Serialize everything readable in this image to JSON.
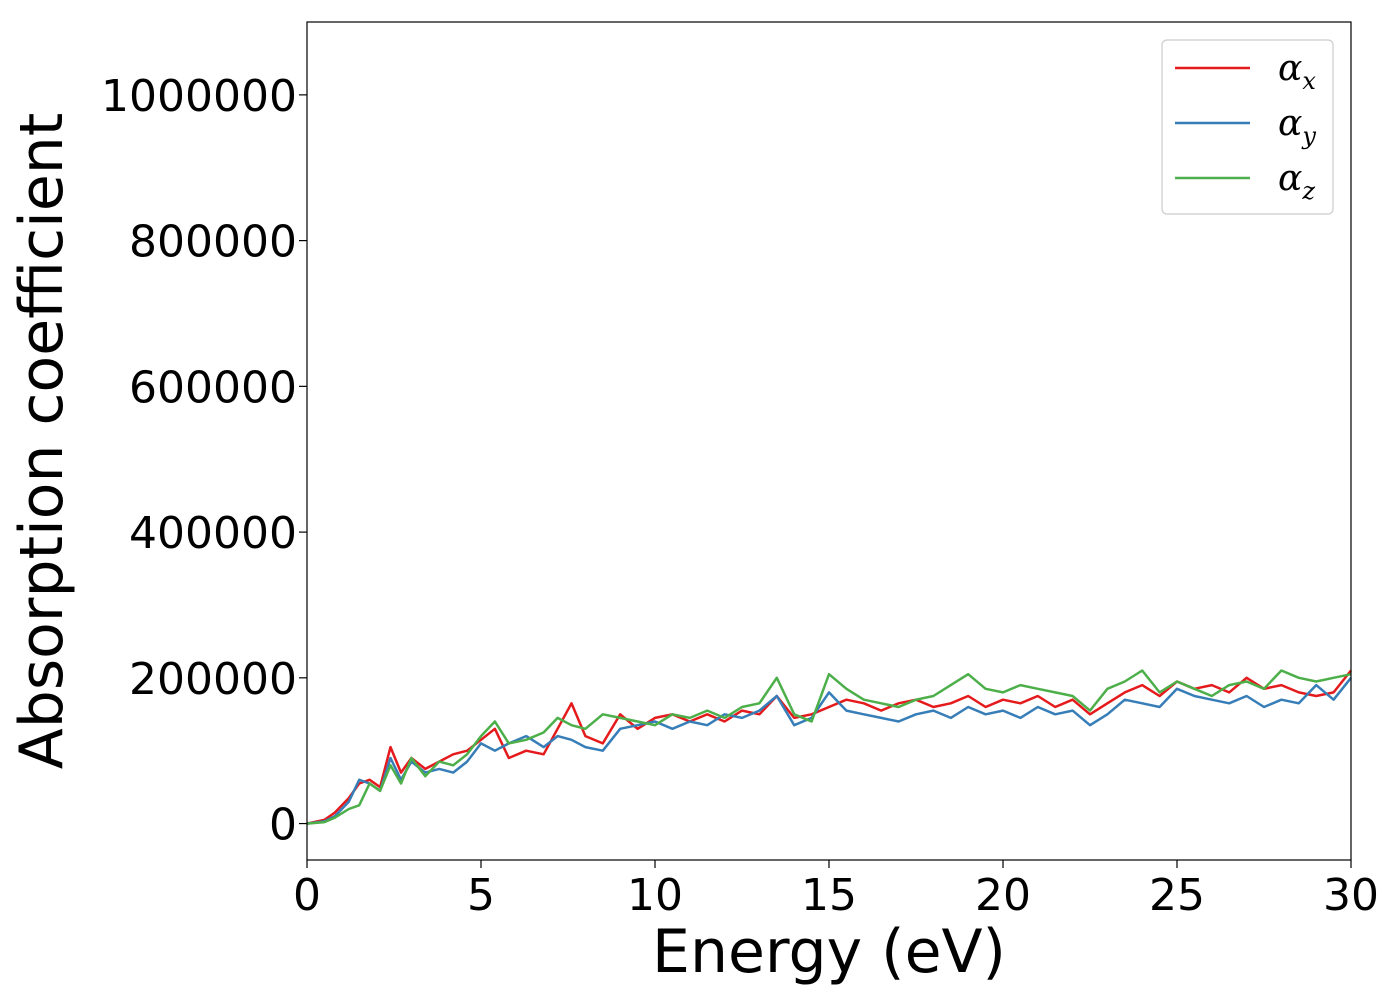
{
  "chart_data": {
    "type": "line",
    "title": "",
    "xlabel": "Energy (eV)",
    "ylabel": "Absorption coefficient",
    "xlim": [
      0,
      30
    ],
    "ylim": [
      -50000,
      1100000
    ],
    "xticks": [
      "0",
      "5",
      "10",
      "15",
      "20",
      "25",
      "30"
    ],
    "xtick_values": [
      0,
      5,
      10,
      15,
      20,
      25,
      30
    ],
    "yticks": [
      "0",
      "200000",
      "400000",
      "600000",
      "800000",
      "1000000"
    ],
    "ytick_values": [
      0,
      200000,
      400000,
      600000,
      800000,
      1000000
    ],
    "grid": false,
    "legend_position": "upper-right",
    "series": [
      {
        "name": "αx",
        "symbol": "α",
        "subscript": "x",
        "color": "#e41a1c",
        "x": [
          0,
          0.5,
          0.8,
          1.2,
          1.5,
          1.8,
          2.1,
          2.4,
          2.7,
          3.0,
          3.4,
          3.8,
          4.2,
          4.6,
          5.0,
          5.4,
          5.8,
          6.3,
          6.8,
          7.2,
          7.6,
          8.0,
          8.5,
          9.0,
          9.5,
          10.0,
          10.5,
          11.0,
          11.5,
          12.0,
          12.5,
          13.0,
          13.5,
          14.0,
          14.5,
          15.0,
          15.5,
          16.0,
          16.5,
          17.0,
          17.5,
          18.0,
          18.5,
          19.0,
          19.5,
          20.0,
          20.5,
          21.0,
          21.5,
          22.0,
          22.5,
          23.0,
          23.5,
          24.0,
          24.5,
          25.0,
          25.5,
          26.0,
          26.5,
          27.0,
          27.5,
          28.0,
          28.5,
          29.0,
          29.5,
          30.0
        ],
        "y": [
          0,
          5000,
          15000,
          35000,
          55000,
          60000,
          50000,
          105000,
          70000,
          90000,
          75000,
          85000,
          95000,
          100000,
          115000,
          130000,
          90000,
          100000,
          95000,
          130000,
          165000,
          120000,
          110000,
          150000,
          130000,
          145000,
          150000,
          140000,
          150000,
          140000,
          155000,
          150000,
          175000,
          145000,
          150000,
          160000,
          170000,
          165000,
          155000,
          165000,
          170000,
          160000,
          165000,
          175000,
          160000,
          170000,
          165000,
          175000,
          160000,
          170000,
          150000,
          165000,
          180000,
          190000,
          175000,
          195000,
          185000,
          190000,
          180000,
          200000,
          185000,
          190000,
          180000,
          175000,
          180000,
          210000
        ]
      },
      {
        "name": "αy",
        "symbol": "α",
        "subscript": "y",
        "color": "#377eb8",
        "x": [
          0,
          0.5,
          0.8,
          1.2,
          1.5,
          1.8,
          2.1,
          2.4,
          2.7,
          3.0,
          3.4,
          3.8,
          4.2,
          4.6,
          5.0,
          5.4,
          5.8,
          6.3,
          6.8,
          7.2,
          7.6,
          8.0,
          8.5,
          9.0,
          9.5,
          10.0,
          10.5,
          11.0,
          11.5,
          12.0,
          12.5,
          13.0,
          13.5,
          14.0,
          14.5,
          15.0,
          15.5,
          16.0,
          16.5,
          17.0,
          17.5,
          18.0,
          18.5,
          19.0,
          19.5,
          20.0,
          20.5,
          21.0,
          21.5,
          22.0,
          22.5,
          23.0,
          23.5,
          24.0,
          24.5,
          25.0,
          25.5,
          26.0,
          26.5,
          27.0,
          27.5,
          28.0,
          28.5,
          29.0,
          29.5,
          30.0
        ],
        "y": [
          0,
          3000,
          10000,
          30000,
          60000,
          55000,
          45000,
          90000,
          60000,
          85000,
          70000,
          75000,
          70000,
          85000,
          110000,
          100000,
          110000,
          120000,
          105000,
          120000,
          115000,
          105000,
          100000,
          130000,
          135000,
          140000,
          130000,
          140000,
          135000,
          150000,
          145000,
          155000,
          175000,
          135000,
          145000,
          180000,
          155000,
          150000,
          145000,
          140000,
          150000,
          155000,
          145000,
          160000,
          150000,
          155000,
          145000,
          160000,
          150000,
          155000,
          135000,
          150000,
          170000,
          165000,
          160000,
          185000,
          175000,
          170000,
          165000,
          175000,
          160000,
          170000,
          165000,
          190000,
          170000,
          200000
        ]
      },
      {
        "name": "αz",
        "symbol": "α",
        "subscript": "z",
        "color": "#4daf4a",
        "x": [
          0,
          0.5,
          0.8,
          1.2,
          1.5,
          1.8,
          2.1,
          2.4,
          2.7,
          3.0,
          3.4,
          3.8,
          4.2,
          4.6,
          5.0,
          5.4,
          5.8,
          6.3,
          6.8,
          7.2,
          7.6,
          8.0,
          8.5,
          9.0,
          9.5,
          10.0,
          10.5,
          11.0,
          11.5,
          12.0,
          12.5,
          13.0,
          13.5,
          14.0,
          14.5,
          15.0,
          15.5,
          16.0,
          16.5,
          17.0,
          17.5,
          18.0,
          18.5,
          19.0,
          19.5,
          20.0,
          20.5,
          21.0,
          21.5,
          22.0,
          22.5,
          23.0,
          23.5,
          24.0,
          24.5,
          25.0,
          25.5,
          26.0,
          26.5,
          27.0,
          27.5,
          28.0,
          28.5,
          29.0,
          29.5,
          30.0
        ],
        "y": [
          0,
          2000,
          8000,
          20000,
          25000,
          55000,
          45000,
          80000,
          55000,
          90000,
          65000,
          85000,
          80000,
          95000,
          120000,
          140000,
          110000,
          115000,
          125000,
          145000,
          135000,
          130000,
          150000,
          145000,
          140000,
          135000,
          150000,
          145000,
          155000,
          145000,
          160000,
          165000,
          200000,
          150000,
          140000,
          205000,
          185000,
          170000,
          165000,
          160000,
          170000,
          175000,
          190000,
          205000,
          185000,
          180000,
          190000,
          185000,
          180000,
          175000,
          155000,
          185000,
          195000,
          210000,
          180000,
          195000,
          185000,
          175000,
          190000,
          195000,
          185000,
          210000,
          200000,
          195000,
          200000,
          205000
        ]
      }
    ]
  }
}
